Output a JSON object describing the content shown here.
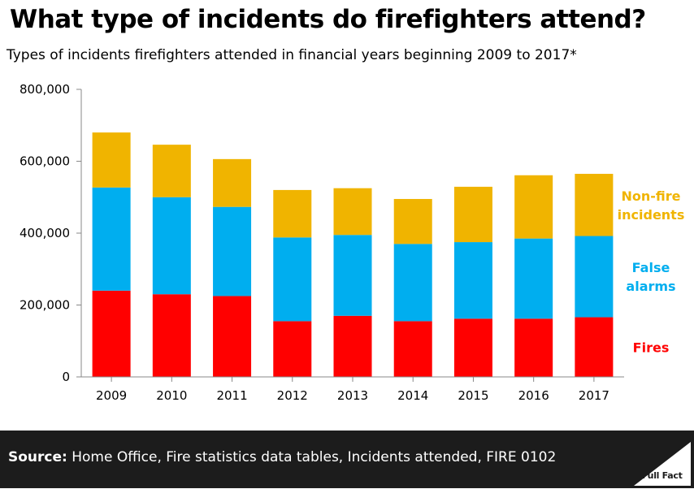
{
  "title": "What type of incidents do firefighters attend?",
  "subtitle": "Types of incidents firefighters attended in financial years beginning 2009 to 2017*",
  "source_label": "Source:",
  "source_text": " Home Office, Fire statistics data tables, Incidents attended, FIRE 0102",
  "logo_text": "Full Fact",
  "chart_data": {
    "type": "bar",
    "stacked": true,
    "categories": [
      "2009",
      "2010",
      "2011",
      "2012",
      "2013",
      "2014",
      "2015",
      "2016",
      "2017"
    ],
    "series": [
      {
        "name": "Fires",
        "color": "#ff0000",
        "values": [
          240000,
          230000,
          225000,
          155000,
          170000,
          155000,
          162000,
          162000,
          166000
        ]
      },
      {
        "name": "False alarms",
        "color": "#00aeef",
        "values": [
          287000,
          270000,
          248000,
          233000,
          225000,
          215000,
          213000,
          223000,
          226000
        ]
      },
      {
        "name": "Non-fire incidents",
        "color": "#f0b400",
        "values": [
          153000,
          146000,
          133000,
          132000,
          130000,
          125000,
          154000,
          176000,
          173000
        ]
      }
    ],
    "series_labels": [
      {
        "series": "Non-fire incidents",
        "lines": [
          "Non-fire",
          "incidents"
        ]
      },
      {
        "series": "False alarms",
        "lines": [
          "False",
          "alarms"
        ]
      },
      {
        "series": "Fires",
        "lines": [
          "Fires"
        ]
      }
    ],
    "yticks": [
      "0",
      "200,000",
      "400,000",
      "600,000",
      "800,000"
    ],
    "ylim": [
      0,
      800000
    ],
    "xlabel": "",
    "ylabel": ""
  }
}
